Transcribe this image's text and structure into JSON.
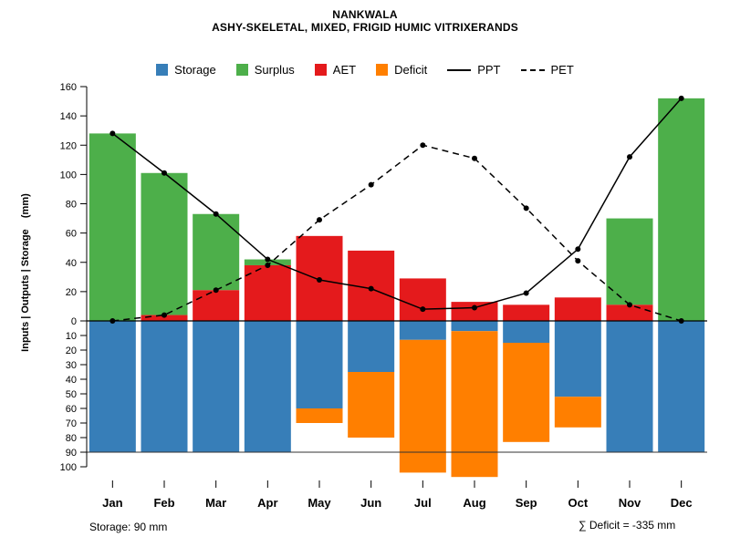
{
  "title": {
    "line1": "NANKWALA",
    "line2": "ASHY-SKELETAL, MIXED, FRIGID HUMIC VITRIXERANDS"
  },
  "legend": {
    "items": [
      {
        "label": "Storage",
        "type": "swatch",
        "color": "#377EB8"
      },
      {
        "label": "Surplus",
        "type": "swatch",
        "color": "#4DAF4A"
      },
      {
        "label": "AET",
        "type": "swatch",
        "color": "#E41A1C"
      },
      {
        "label": "Deficit",
        "type": "swatch",
        "color": "#FF7F00"
      },
      {
        "label": "PPT",
        "type": "line",
        "dash": "solid"
      },
      {
        "label": "PET",
        "type": "line",
        "dash": "dashed"
      }
    ]
  },
  "footer": {
    "storage_note": "Storage: 90 mm",
    "deficit_note": "∑ Deficit = -335 mm"
  },
  "chart_data": {
    "type": "bar",
    "title": "NANKWALA",
    "subtitle": "ASHY-SKELETAL, MIXED, FRIGID HUMIC VITRIXERANDS",
    "ylabel": "Inputs | Outputs | Storage    (mm)",
    "xlabel": "",
    "grid": false,
    "legend_position": "top",
    "categories": [
      "Jan",
      "Feb",
      "Mar",
      "Apr",
      "May",
      "Jun",
      "Jul",
      "Aug",
      "Sep",
      "Oct",
      "Nov",
      "Dec"
    ],
    "upper_axis": {
      "ylim": [
        0,
        160
      ],
      "ticks": [
        0,
        20,
        40,
        60,
        80,
        100,
        120,
        140,
        160
      ]
    },
    "lower_axis": {
      "ylim": [
        0,
        100
      ],
      "ticks": [
        10,
        20,
        30,
        40,
        50,
        60,
        70,
        80,
        90,
        100
      ],
      "capacity_line": 90
    },
    "annotations": {
      "storage_capacity_mm": 90,
      "deficit_sum_mm": -335
    },
    "series": [
      {
        "name": "AET",
        "kind": "bar-upper",
        "color": "#E41A1C",
        "values": [
          0,
          4,
          21,
          38,
          58,
          48,
          29,
          13,
          11,
          16,
          11,
          0
        ]
      },
      {
        "name": "Surplus",
        "kind": "bar-upper-stacked",
        "color": "#4DAF4A",
        "values": [
          128,
          97,
          52,
          4,
          0,
          0,
          0,
          0,
          0,
          0,
          59,
          152
        ]
      },
      {
        "name": "Storage",
        "kind": "bar-lower",
        "color": "#377EB8",
        "values": [
          90,
          90,
          90,
          90,
          60,
          35,
          13,
          7,
          15,
          52,
          90,
          90
        ]
      },
      {
        "name": "Deficit",
        "kind": "bar-lower-stacked",
        "color": "#FF7F00",
        "values": [
          0,
          0,
          0,
          0,
          10,
          45,
          91,
          100,
          68,
          21,
          0,
          0
        ]
      },
      {
        "name": "PPT",
        "kind": "line",
        "style": "solid",
        "color": "#000000",
        "values": [
          128,
          101,
          73,
          42,
          28,
          22,
          8,
          9,
          19,
          49,
          112,
          152
        ]
      },
      {
        "name": "PET",
        "kind": "line",
        "style": "dashed",
        "color": "#000000",
        "values": [
          0,
          4,
          21,
          38,
          69,
          93,
          120,
          111,
          77,
          41,
          11,
          0
        ]
      }
    ]
  }
}
